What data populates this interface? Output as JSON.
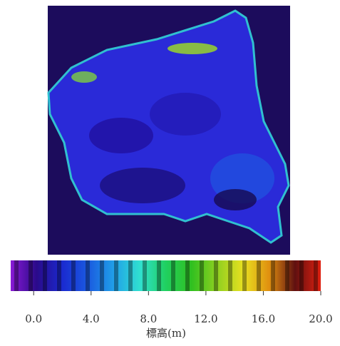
{
  "chart_data": {
    "type": "colorbar",
    "axis_label": "標高(m)",
    "xlim": [
      -1.6,
      20
    ],
    "xticks": [
      {
        "value": 0,
        "label": "0.0"
      },
      {
        "value": 4,
        "label": "4.0"
      },
      {
        "value": 8,
        "label": "8.0"
      },
      {
        "value": 12,
        "label": "12.0"
      },
      {
        "value": 16,
        "label": "16.0"
      },
      {
        "value": 20,
        "label": "20.0"
      }
    ],
    "colors": [
      "#8a1ad6",
      "#2a0a8a",
      "#1a2ad0",
      "#1a5ae0",
      "#20a0e8",
      "#30e0d0",
      "#20d060",
      "#30c020",
      "#90d020",
      "#e8e020",
      "#e09010",
      "#601010",
      "#e02010"
    ]
  }
}
